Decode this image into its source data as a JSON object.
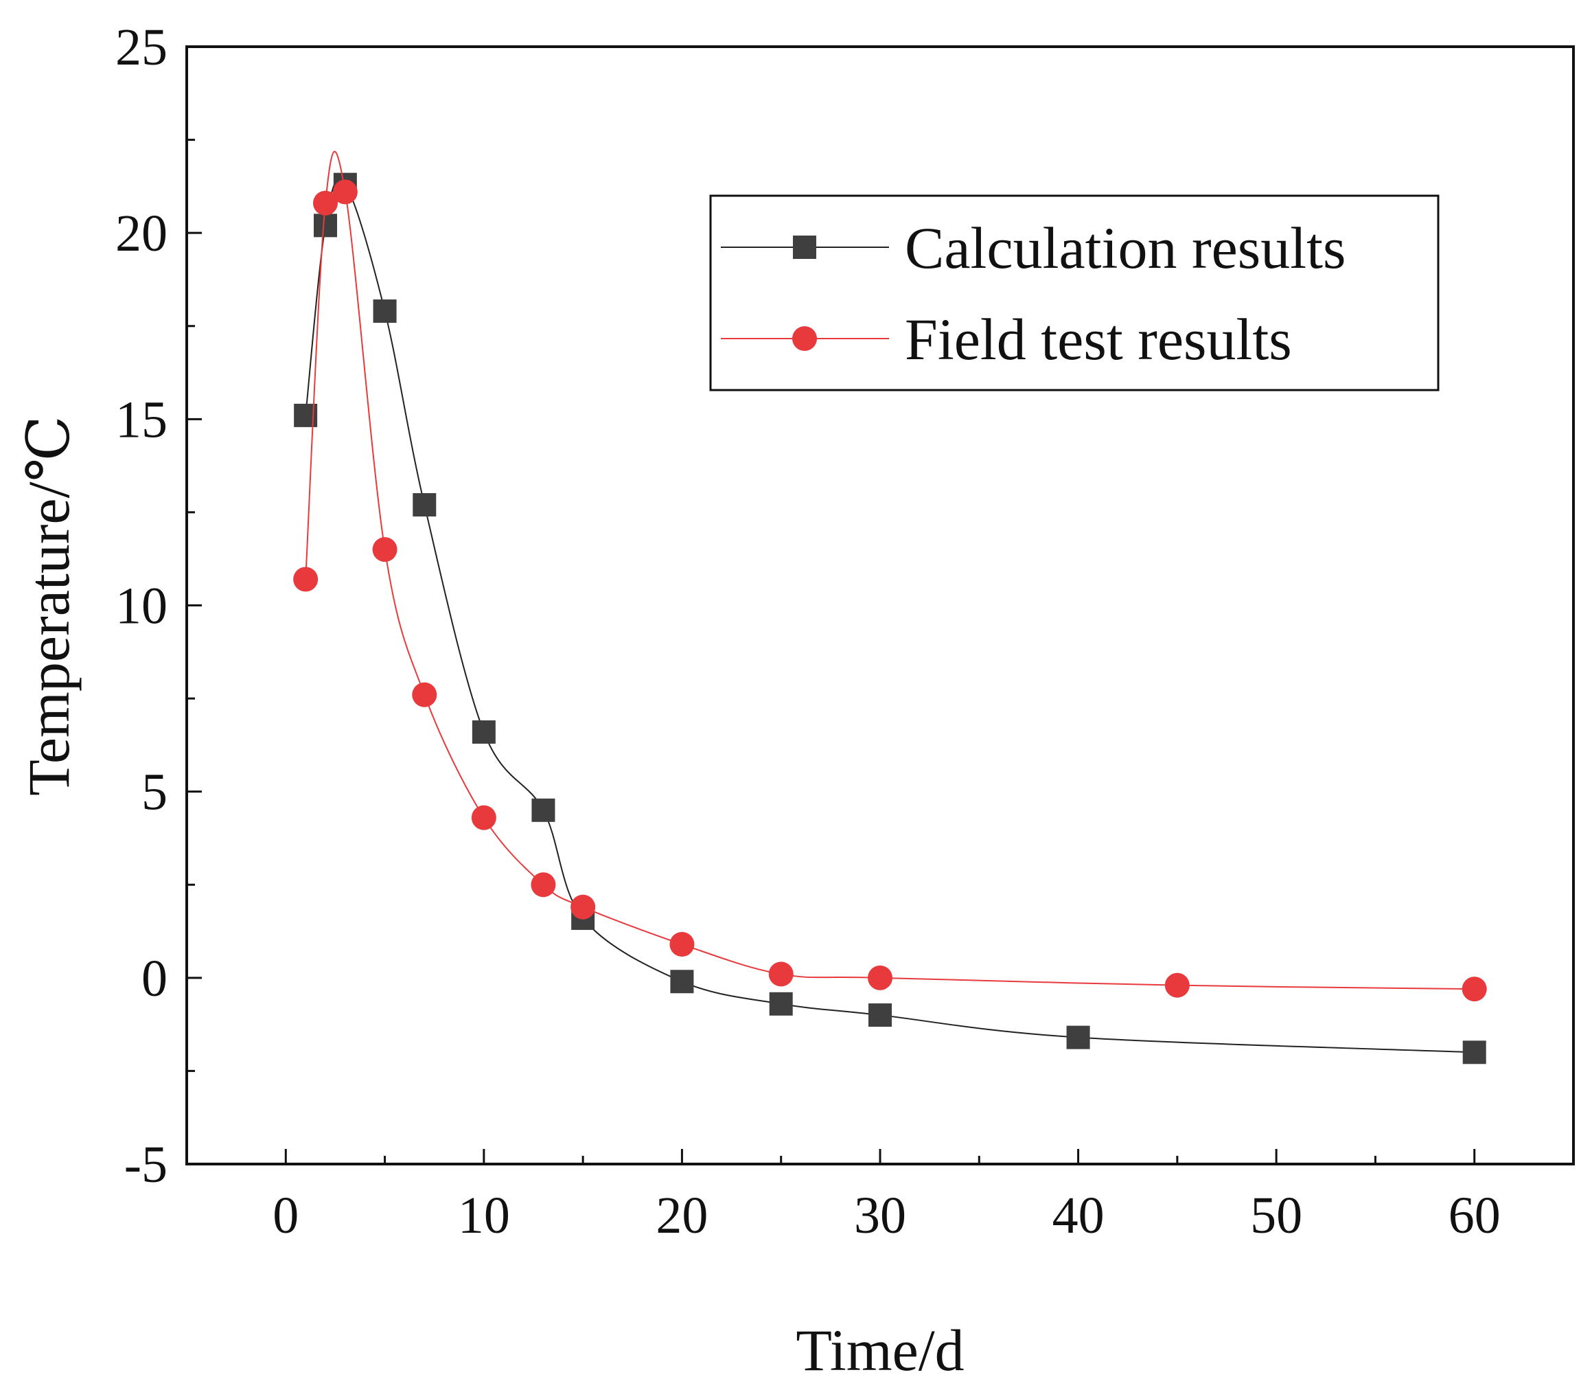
{
  "chart_data": {
    "type": "line",
    "title": "",
    "xlabel": "Time/d",
    "ylabel": "Temperature/℃",
    "xlim": [
      -5,
      65
    ],
    "ylim": [
      -5,
      25
    ],
    "xticks": [
      0,
      10,
      20,
      30,
      40,
      50,
      60
    ],
    "xtick_labels": [
      "0",
      "10",
      "20",
      "30",
      "40",
      "50",
      "60"
    ],
    "yticks": [
      -5,
      0,
      5,
      10,
      15,
      20,
      25
    ],
    "ytick_labels": [
      "-5",
      "0",
      "5",
      "10",
      "15",
      "20",
      "25"
    ],
    "grid": false,
    "legend_position": "top-right",
    "series": [
      {
        "name": "Calculation results",
        "marker": "square",
        "color": "#3f3f3f",
        "line_color": "#222222",
        "x": [
          1,
          2,
          3,
          5,
          7,
          10,
          13,
          15,
          20,
          25,
          30,
          40,
          60
        ],
        "y": [
          15.1,
          20.2,
          21.3,
          17.9,
          12.7,
          6.6,
          4.5,
          1.6,
          -0.1,
          -0.7,
          -1.0,
          -1.6,
          -2.0
        ]
      },
      {
        "name": "Field test results",
        "marker": "circle",
        "color": "#e8393c",
        "line_color": "#e8393c",
        "x": [
          1,
          2,
          3,
          5,
          7,
          10,
          13,
          15,
          20,
          25,
          30,
          45,
          60
        ],
        "y": [
          10.7,
          20.8,
          21.1,
          11.5,
          7.6,
          4.3,
          2.5,
          1.9,
          0.9,
          0.1,
          0.0,
          -0.2,
          -0.3
        ]
      }
    ]
  }
}
